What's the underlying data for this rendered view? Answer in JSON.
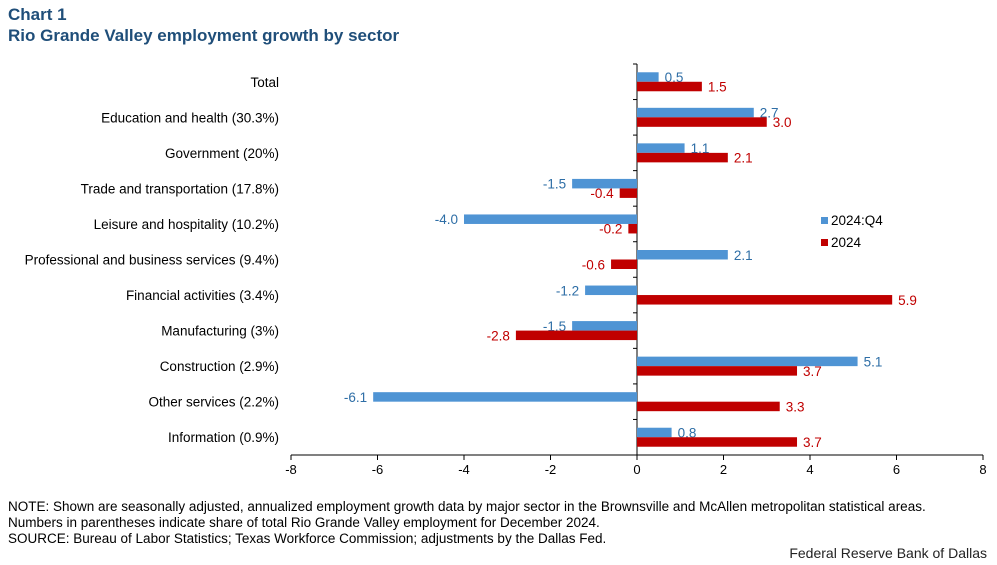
{
  "header": {
    "chart_number": "Chart 1",
    "title": "Rio Grande Valley employment growth by sector"
  },
  "chart_data": {
    "type": "bar",
    "orientation": "horizontal",
    "title": "Rio Grande Valley employment growth by sector",
    "categories": [
      "Total",
      "Education and health (30.3%)",
      "Government (20%)",
      "Trade and transportation (17.8%)",
      "Leisure and hospitality (10.2%)",
      "Professional and business services (9.4%)",
      "Financial activities (3.4%)",
      "Manufacturing (3%)",
      "Construction (2.9%)",
      "Other services (2.2%)",
      "Information (0.9%)"
    ],
    "series": [
      {
        "name": "2024:Q4",
        "color": "#4f94d4",
        "label_color": "#2e6ea6",
        "values": [
          0.5,
          2.7,
          1.1,
          -1.5,
          -4.0,
          2.1,
          -1.2,
          -1.5,
          5.1,
          -6.1,
          0.8
        ]
      },
      {
        "name": "2024",
        "color": "#c00000",
        "label_color": "#c00000",
        "values": [
          1.5,
          3.0,
          2.1,
          -0.4,
          -0.2,
          -0.6,
          5.9,
          -2.8,
          3.7,
          3.3,
          3.7
        ]
      }
    ],
    "xlim": [
      -8,
      8
    ],
    "xticks": [
      -8,
      -6,
      -4,
      -2,
      0,
      2,
      4,
      6,
      8
    ],
    "xlabel": "",
    "ylabel": "",
    "legend_position": "right"
  },
  "footer": {
    "note": "NOTE: Shown are seasonally adjusted, annualized employment growth data by major sector in the Brownsville and McAllen metropolitan statistical areas. Numbers in parentheses indicate share of total Rio Grande Valley employment for December 2024.",
    "source": "SOURCE: Bureau of Labor Statistics; Texas Workforce Commission; adjustments by the Dallas Fed.",
    "credit": "Federal Reserve Bank of Dallas"
  }
}
